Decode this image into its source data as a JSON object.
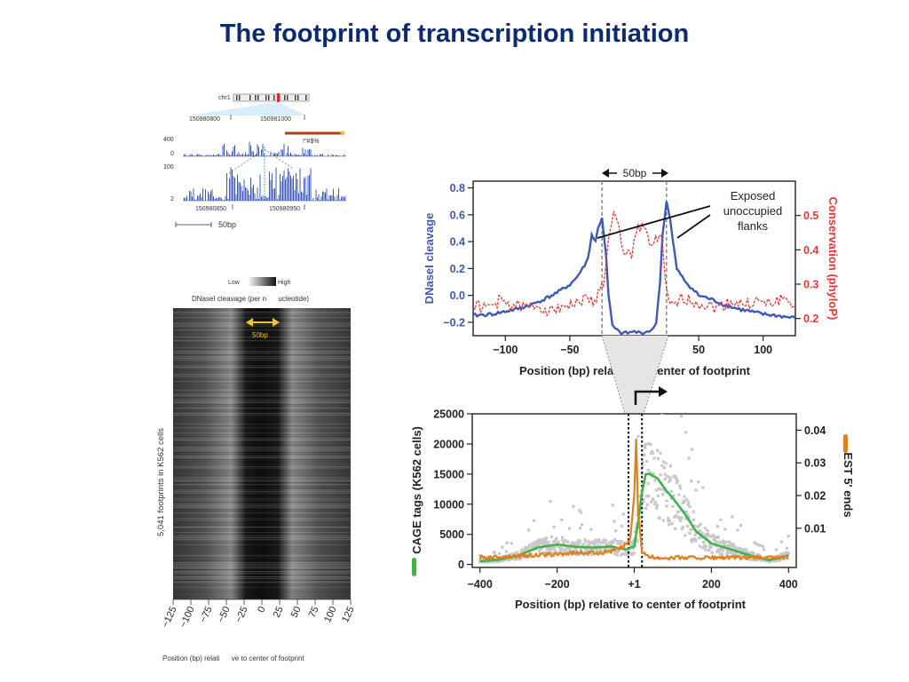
{
  "title": "The footprint of transcription initiation",
  "colors": {
    "blue": "#3d58b8",
    "red": "#e53935",
    "green": "#3fb24b",
    "orange": "#e0801c",
    "grey": "#c8c8c8",
    "title": "#0d2a6e"
  },
  "track": {
    "chrom": "chr1",
    "coord_top_left": "150980800",
    "coord_top_right": "150981000",
    "coord_bottom_left": "150980850",
    "coord_bottom_right": "150980950",
    "label_glyphs": "!\"#$%",
    "y_ticks_top": [
      "400",
      "0"
    ],
    "y_ticks_bottom": [
      "100",
      "2"
    ],
    "scale_bar": "50bp"
  },
  "heatmap": {
    "legend_low": "Low",
    "legend_high": "High",
    "subtitle": "DNaseI cleavage (per n      ucleotide)",
    "width_marker": "50bp",
    "ylabel": "5,041 footprints in K562 cells",
    "xticks": [
      "−125",
      "−100",
      "−75",
      "−50",
      "−25",
      "0",
      "25",
      "50",
      "75",
      "100",
      "125"
    ],
    "xlabel": "Position (bp) relati      ve to center of footprint"
  },
  "chart_data": [
    {
      "type": "line",
      "title": "",
      "xlabel": "Position (bp) relative to center of footprint",
      "ylabel": "DNaseI cleavage",
      "ylabel_right": "Conservation (phyloP)",
      "xlim": [
        -125,
        125
      ],
      "ylim": [
        -0.3,
        0.85
      ],
      "ylim_right": [
        0.15,
        0.6
      ],
      "xticks": [
        "−100",
        "−50",
        "0",
        "50",
        "100"
      ],
      "yticks": [
        "0.8",
        "0.6",
        "0.4",
        "0.2",
        "0.0",
        "−0.2"
      ],
      "yticks_right": [
        "0.5",
        "0.4",
        "0.3",
        "0.2"
      ],
      "annotation": "Exposed unoccupied flanks",
      "annotation_lines": [
        "Exposed",
        "unoccupied",
        "flanks"
      ],
      "bracket_label": "50bp",
      "series": [
        {
          "color": "#3d58b8",
          "axis": "left",
          "x": [
            -125,
            -110,
            -100,
            -90,
            -80,
            -70,
            -60,
            -50,
            -45,
            -40,
            -36,
            -33,
            -30,
            -28,
            -25,
            -22,
            -20,
            -17,
            -15,
            -12,
            -10,
            -5,
            0,
            5,
            10,
            15,
            17,
            20,
            22,
            25,
            28,
            30,
            33,
            36,
            40,
            45,
            50,
            60,
            70,
            80,
            90,
            100,
            110,
            125
          ],
          "y": [
            -0.15,
            -0.14,
            -0.12,
            -0.1,
            -0.07,
            -0.03,
            0.02,
            0.08,
            0.13,
            0.2,
            0.27,
            0.45,
            0.4,
            0.5,
            0.58,
            0.3,
            0.0,
            -0.22,
            -0.25,
            -0.27,
            -0.28,
            -0.28,
            -0.27,
            -0.28,
            -0.27,
            -0.25,
            -0.2,
            0.1,
            0.45,
            0.7,
            0.55,
            0.4,
            0.2,
            0.15,
            0.1,
            0.05,
            0.0,
            -0.03,
            -0.07,
            -0.1,
            -0.12,
            -0.14,
            -0.15,
            -0.17
          ]
        },
        {
          "color": "#e53935",
          "axis": "right",
          "x": [
            -125,
            -115,
            -105,
            -95,
            -85,
            -75,
            -65,
            -55,
            -45,
            -38,
            -32,
            -28,
            -24,
            -20,
            -16,
            -13,
            -10,
            -8,
            -5,
            -2,
            0,
            3,
            6,
            9,
            12,
            15,
            18,
            21,
            24,
            28,
            32,
            38,
            45,
            55,
            65,
            75,
            85,
            95,
            105,
            115,
            125
          ],
          "y": [
            0.24,
            0.23,
            0.25,
            0.24,
            0.23,
            0.24,
            0.22,
            0.24,
            0.24,
            0.26,
            0.25,
            0.27,
            0.3,
            0.42,
            0.5,
            0.48,
            0.42,
            0.38,
            0.41,
            0.38,
            0.43,
            0.47,
            0.47,
            0.45,
            0.41,
            0.42,
            0.43,
            0.45,
            0.3,
            0.23,
            0.24,
            0.26,
            0.25,
            0.24,
            0.23,
            0.25,
            0.24,
            0.25,
            0.24,
            0.26,
            0.24
          ]
        }
      ]
    },
    {
      "type": "line",
      "title": "",
      "xlabel": "Position (bp) relative to center of footprint",
      "ylabel": "CAGE tags (K562 cells)",
      "ylabel_right": "EST 5' ends",
      "xlim": [
        -420,
        420
      ],
      "ylim": [
        -500,
        25000
      ],
      "ylim_right": [
        -0.002,
        0.045
      ],
      "xticks": [
        "−400",
        "−200",
        "+1",
        "200",
        "400"
      ],
      "yticks": [
        "25000",
        "20000",
        "15000",
        "10000",
        "5000",
        "0"
      ],
      "yticks_right": [
        "0.04",
        "0.03",
        "0.02",
        "0.01"
      ],
      "marker_plus1": "+1",
      "series": [
        {
          "color": "#3fb24b",
          "axis": "left",
          "x": [
            -400,
            -350,
            -300,
            -250,
            -200,
            -150,
            -100,
            -60,
            -40,
            -20,
            0,
            10,
            20,
            30,
            40,
            60,
            80,
            100,
            130,
            160,
            200,
            250,
            300,
            350,
            400
          ],
          "y": [
            500,
            800,
            1500,
            2800,
            3300,
            2900,
            2800,
            3000,
            2700,
            2500,
            3000,
            7000,
            12000,
            15000,
            15000,
            14300,
            12500,
            11000,
            8500,
            5500,
            3500,
            2500,
            1500,
            700,
            1500
          ]
        },
        {
          "color": "#e0801c",
          "axis": "right",
          "x": [
            -400,
            -300,
            -200,
            -150,
            -100,
            -60,
            -30,
            -10,
            0,
            5,
            10,
            20,
            30,
            50,
            100,
            200,
            300,
            400
          ],
          "y": [
            0.001,
            0.0015,
            0.002,
            0.0025,
            0.0025,
            0.003,
            0.004,
            0.007,
            0.02,
            0.037,
            0.015,
            0.003,
            0.0015,
            0.001,
            0.001,
            0.001,
            0.001,
            0.001
          ]
        }
      ]
    }
  ]
}
